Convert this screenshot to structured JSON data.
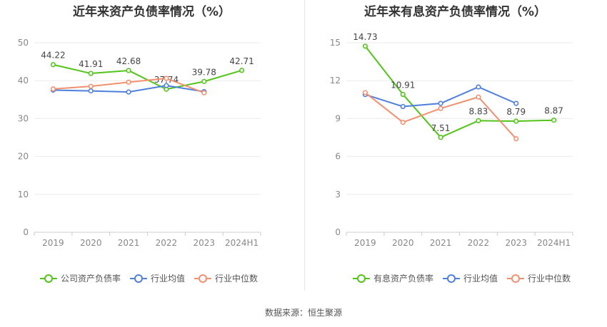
{
  "source_label": "数据来源：恒生聚源",
  "chart_data": [
    {
      "type": "line",
      "title": "近年来资产负债率情况（%）",
      "categories": [
        "2019",
        "2020",
        "2021",
        "2022",
        "2023",
        "2024H1"
      ],
      "ylim": [
        0,
        50
      ],
      "yticks": [
        0,
        10,
        20,
        30,
        40,
        50
      ],
      "grid": true,
      "legend_position": "bottom",
      "series": [
        {
          "name": "公司资产负债率",
          "color": "#52c41a",
          "values": [
            44.22,
            41.91,
            42.68,
            37.74,
            39.78,
            42.71
          ],
          "labels": [
            "44.22",
            "41.91",
            "42.68",
            "37.74",
            "39.78",
            "42.71"
          ]
        },
        {
          "name": "行业均值",
          "color": "#4e7fdc",
          "values": [
            37.5,
            37.3,
            37.0,
            38.7,
            37.1,
            null
          ]
        },
        {
          "name": "行业中位数",
          "color": "#f39070",
          "values": [
            37.8,
            38.5,
            39.6,
            40.6,
            36.8,
            null
          ]
        }
      ]
    },
    {
      "type": "line",
      "title": "近年来有息资产负债率情况（%）",
      "categories": [
        "2019",
        "2020",
        "2021",
        "2022",
        "2023",
        "2024H1"
      ],
      "ylim": [
        0,
        15
      ],
      "yticks": [
        0,
        3,
        6,
        9,
        12,
        15
      ],
      "grid": true,
      "legend_position": "bottom",
      "series": [
        {
          "name": "有息资产负债率",
          "color": "#52c41a",
          "values": [
            14.73,
            10.91,
            7.51,
            8.83,
            8.79,
            8.87
          ],
          "labels": [
            "14.73",
            "10.91",
            "7.51",
            "8.83",
            "8.79",
            "8.87"
          ]
        },
        {
          "name": "行业均值",
          "color": "#4e7fdc",
          "values": [
            10.9,
            9.95,
            10.2,
            11.5,
            10.2,
            null
          ]
        },
        {
          "name": "行业中位数",
          "color": "#f39070",
          "values": [
            11.05,
            8.7,
            9.8,
            10.7,
            7.4,
            null
          ]
        }
      ]
    }
  ]
}
